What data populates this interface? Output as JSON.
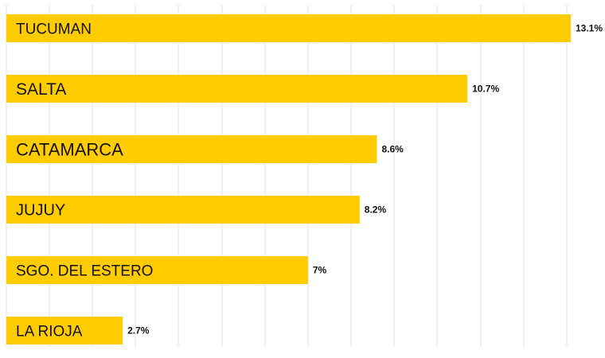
{
  "chart_data": {
    "type": "bar",
    "orientation": "horizontal",
    "title": "",
    "xlabel": "",
    "ylabel": "",
    "xlim": [
      0,
      13.1
    ],
    "grid": true,
    "bar_color": "#FFCC00",
    "grid_color": "#dde2ea",
    "categories": [
      "TUCUMAN",
      "SALTA",
      "CATAMARCA",
      "JUJUY",
      "SGO. DEL ESTERO",
      "LA RIOJA"
    ],
    "values": [
      13.1,
      10.7,
      8.6,
      8.2,
      7,
      2.7
    ],
    "value_labels": [
      "13.1%",
      "10.7%",
      "8.6%",
      "8.2%",
      "7%",
      "2.7%"
    ]
  }
}
